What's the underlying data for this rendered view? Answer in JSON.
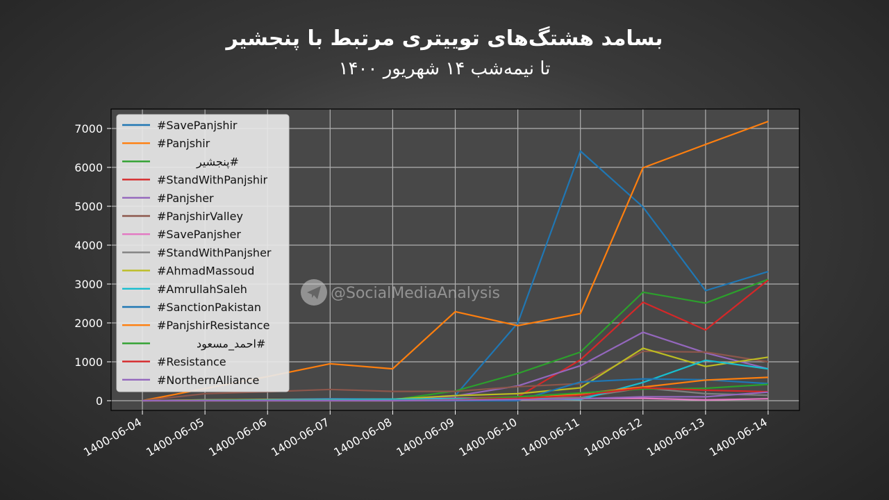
{
  "header": {
    "title": "بسامد هشتگ‌های توییتری مرتبط با پنجشیر",
    "subtitle": "تا نیمه‌شب ۱۴ شهریور ۱۴۰۰"
  },
  "watermark": {
    "text": "@SocialMediaAnalysis",
    "icon": "telegram-icon"
  },
  "chart_data": {
    "type": "line",
    "categories": [
      "1400-06-04",
      "1400-06-05",
      "1400-06-06",
      "1400-06-07",
      "1400-06-08",
      "1400-06-09",
      "1400-06-10",
      "1400-06-11",
      "1400-06-12",
      "1400-06-13",
      "1400-06-14"
    ],
    "ylim": [
      -250,
      7500
    ],
    "yticks": [
      0,
      1000,
      2000,
      3000,
      4000,
      5000,
      6000,
      7000
    ],
    "grid": true,
    "legend_position": "top-left",
    "background": "#484848",
    "series": [
      {
        "name": "#SavePanjshir",
        "color": "#1f77b4",
        "values": [
          0,
          20,
          30,
          50,
          40,
          130,
          2000,
          6420,
          4980,
          2830,
          3320
        ]
      },
      {
        "name": "#Panjshir",
        "color": "#ff7f0e",
        "values": [
          0,
          310,
          620,
          950,
          820,
          2290,
          1930,
          2240,
          5990,
          6590,
          7180
        ]
      },
      {
        "name": "#پنجشیر",
        "color": "#2ca02c",
        "values": [
          0,
          0,
          20,
          30,
          20,
          250,
          700,
          1250,
          2790,
          2510,
          3120
        ]
      },
      {
        "name": "#StandWithPanjshir",
        "color": "#d62728",
        "values": [
          0,
          0,
          10,
          20,
          30,
          60,
          100,
          1050,
          2530,
          1820,
          3100
        ]
      },
      {
        "name": "#Panjsher",
        "color": "#9467bd",
        "values": [
          0,
          20,
          30,
          40,
          40,
          120,
          380,
          900,
          1760,
          1230,
          820
        ]
      },
      {
        "name": "#PanjshirValley",
        "color": "#8c564b",
        "values": [
          0,
          180,
          230,
          290,
          240,
          240,
          360,
          440,
          1270,
          1250,
          1000
        ]
      },
      {
        "name": "#SavePanjsher",
        "color": "#e377c2",
        "values": [
          0,
          10,
          30,
          30,
          30,
          60,
          60,
          60,
          60,
          20,
          50
        ]
      },
      {
        "name": "#StandWithPanjsher",
        "color": "#7f7f7f",
        "values": [
          0,
          10,
          20,
          20,
          20,
          50,
          80,
          80,
          330,
          180,
          140
        ]
      },
      {
        "name": "#AhmadMassoud",
        "color": "#bcbd22",
        "values": [
          0,
          20,
          30,
          30,
          40,
          130,
          180,
          330,
          1350,
          880,
          1120
        ]
      },
      {
        "name": "#AmrullahSaleh",
        "color": "#17becf",
        "values": [
          0,
          10,
          20,
          30,
          40,
          50,
          60,
          30,
          470,
          1040,
          820
        ]
      },
      {
        "name": "#SanctionPakistan",
        "color": "#1f77b4",
        "values": [
          0,
          0,
          0,
          0,
          0,
          0,
          0,
          480,
          560,
          540,
          440
        ]
      },
      {
        "name": "#PanjshirResistance",
        "color": "#ff7f0e",
        "values": [
          0,
          0,
          0,
          0,
          0,
          20,
          40,
          180,
          350,
          530,
          600
        ]
      },
      {
        "name": "#احمد_مسعود",
        "color": "#2ca02c",
        "values": [
          0,
          0,
          0,
          0,
          0,
          20,
          100,
          200,
          300,
          320,
          420
        ]
      },
      {
        "name": "#Resistance",
        "color": "#d62728",
        "values": [
          0,
          0,
          0,
          0,
          0,
          20,
          60,
          140,
          330,
          270,
          230
        ]
      },
      {
        "name": "#NorthernAlliance",
        "color": "#9467bd",
        "values": [
          0,
          0,
          0,
          0,
          0,
          10,
          30,
          50,
          100,
          100,
          220
        ]
      }
    ]
  }
}
